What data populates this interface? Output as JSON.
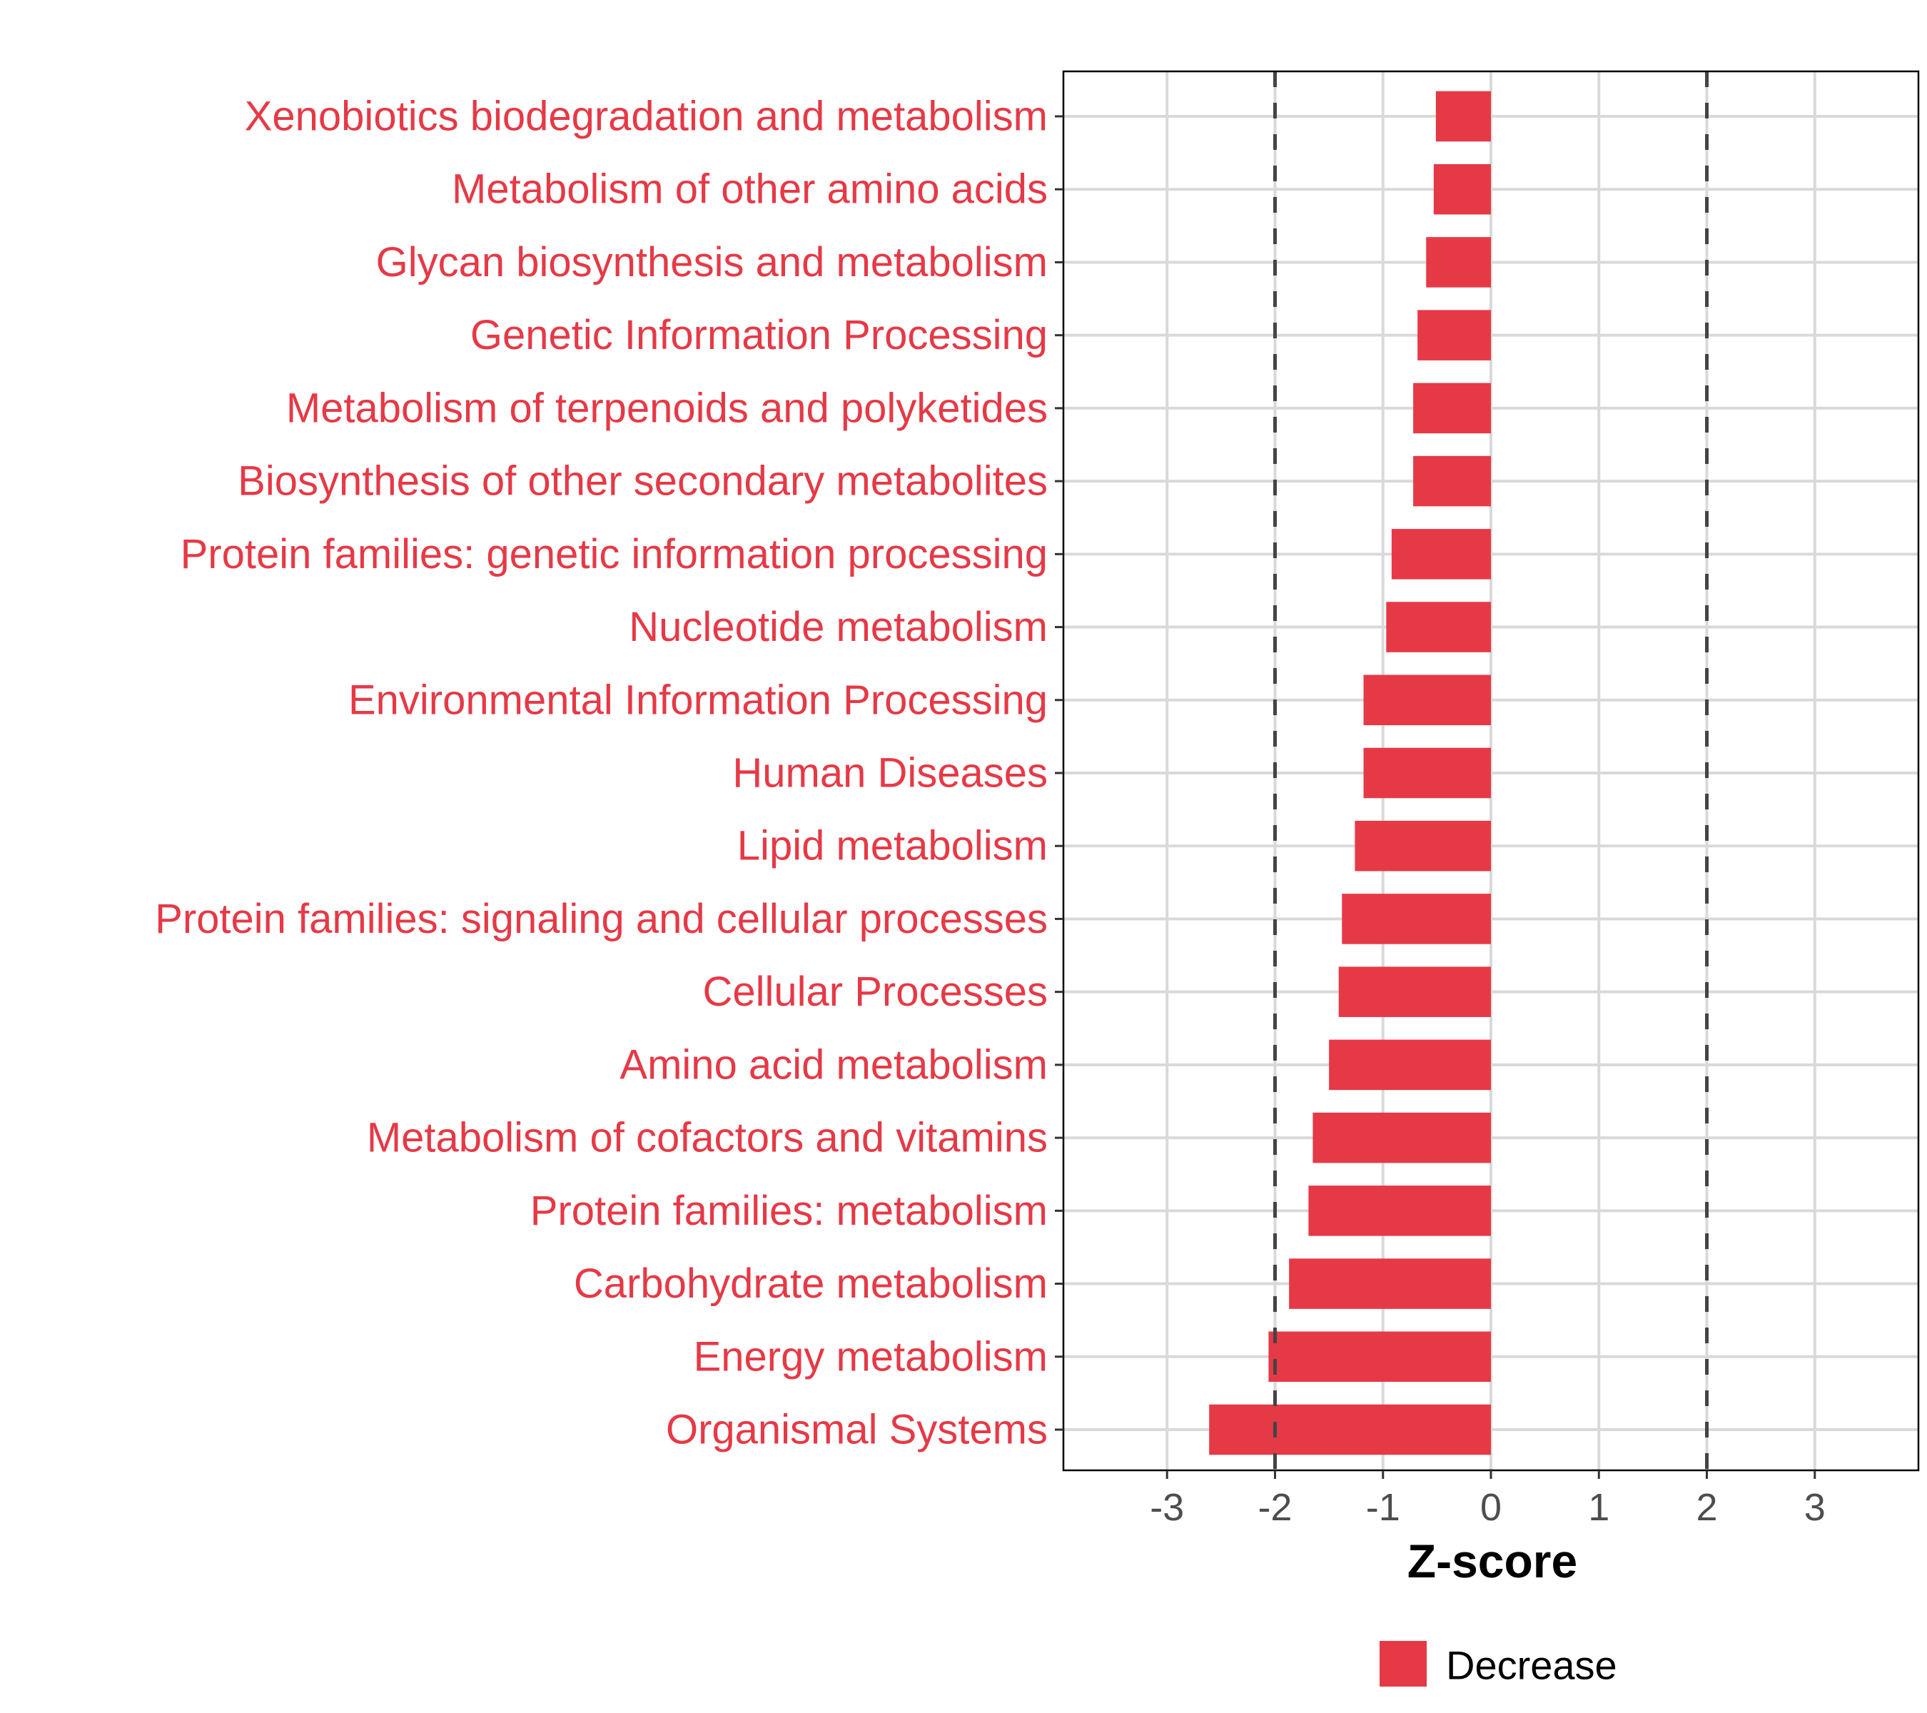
{
  "chart_data": {
    "type": "bar",
    "orientation": "horizontal",
    "title": "",
    "xlabel": "Z-score",
    "ylabel": "",
    "xlim": [
      -3.96,
      3.96
    ],
    "xticks": [
      -3,
      -2,
      -1,
      0,
      1,
      2,
      3
    ],
    "xtick_labels": [
      "-3",
      "-2",
      "-1",
      "0",
      "1",
      "2",
      "3"
    ],
    "reference_lines": [
      -2,
      2
    ],
    "grid": true,
    "legend": {
      "placement": "bottom",
      "entries": [
        {
          "label": "Decrease",
          "color": "#e63946"
        }
      ]
    },
    "categories": [
      "Xenobiotics biodegradation and metabolism",
      "Metabolism of other amino acids",
      "Glycan biosynthesis and metabolism",
      "Genetic Information Processing",
      "Metabolism of terpenoids and polyketides",
      "Biosynthesis of other secondary metabolites",
      "Protein families: genetic information processing",
      "Nucleotide metabolism",
      "Environmental Information Processing",
      "Human Diseases",
      "Lipid metabolism",
      "Protein families: signaling and cellular processes",
      "Cellular Processes",
      "Amino acid metabolism",
      "Metabolism of cofactors and vitamins",
      "Protein families: metabolism",
      "Carbohydrate metabolism",
      "Energy metabolism",
      "Organismal Systems"
    ],
    "series": [
      {
        "name": "Decrease",
        "color": "#e63946",
        "values": [
          -0.51,
          -0.53,
          -0.6,
          -0.68,
          -0.72,
          -0.72,
          -0.92,
          -0.97,
          -1.18,
          -1.18,
          -1.26,
          -1.38,
          -1.41,
          -1.5,
          -1.65,
          -1.69,
          -1.87,
          -2.06,
          -2.61
        ]
      }
    ]
  },
  "colors": {
    "bar": "#e63946",
    "label": "#e63946",
    "grid": "#d9d9d9",
    "refline": "#444444"
  }
}
